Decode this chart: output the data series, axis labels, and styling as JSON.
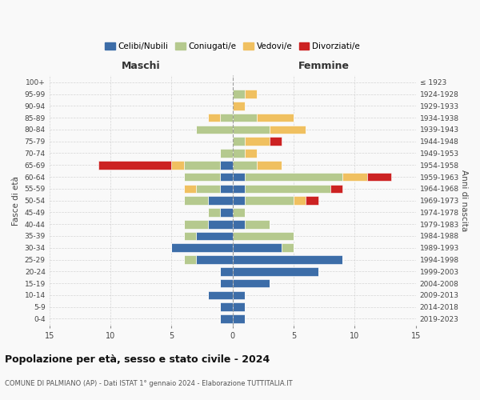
{
  "age_groups": [
    "100+",
    "95-99",
    "90-94",
    "85-89",
    "80-84",
    "75-79",
    "70-74",
    "65-69",
    "60-64",
    "55-59",
    "50-54",
    "45-49",
    "40-44",
    "35-39",
    "30-34",
    "25-29",
    "20-24",
    "15-19",
    "10-14",
    "5-9",
    "0-4"
  ],
  "birth_years": [
    "≤ 1923",
    "1924-1928",
    "1929-1933",
    "1934-1938",
    "1939-1943",
    "1944-1948",
    "1949-1953",
    "1954-1958",
    "1959-1963",
    "1964-1968",
    "1969-1973",
    "1974-1978",
    "1979-1983",
    "1984-1988",
    "1989-1993",
    "1994-1998",
    "1999-2003",
    "2004-2008",
    "2009-2013",
    "2014-2018",
    "2019-2023"
  ],
  "maschi": {
    "celibi": [
      0,
      0,
      0,
      0,
      0,
      0,
      0,
      1,
      1,
      1,
      2,
      1,
      2,
      3,
      5,
      3,
      1,
      1,
      2,
      1,
      1
    ],
    "coniugati": [
      0,
      0,
      0,
      1,
      3,
      0,
      1,
      3,
      3,
      2,
      2,
      1,
      2,
      1,
      0,
      1,
      0,
      0,
      0,
      0,
      0
    ],
    "vedovi": [
      0,
      0,
      0,
      1,
      0,
      0,
      0,
      1,
      0,
      1,
      0,
      0,
      0,
      0,
      0,
      0,
      0,
      0,
      0,
      0,
      0
    ],
    "divorziati": [
      0,
      0,
      0,
      0,
      0,
      0,
      0,
      6,
      0,
      0,
      0,
      0,
      0,
      0,
      0,
      0,
      0,
      0,
      0,
      0,
      0
    ]
  },
  "femmine": {
    "nubili": [
      0,
      0,
      0,
      0,
      0,
      0,
      0,
      0,
      1,
      1,
      1,
      0,
      1,
      0,
      4,
      9,
      7,
      3,
      1,
      1,
      1
    ],
    "coniugate": [
      0,
      1,
      0,
      2,
      3,
      1,
      1,
      2,
      8,
      7,
      4,
      1,
      2,
      5,
      1,
      0,
      0,
      0,
      0,
      0,
      0
    ],
    "vedove": [
      0,
      1,
      1,
      3,
      3,
      2,
      1,
      2,
      2,
      0,
      1,
      0,
      0,
      0,
      0,
      0,
      0,
      0,
      0,
      0,
      0
    ],
    "divorziate": [
      0,
      0,
      0,
      0,
      0,
      1,
      0,
      0,
      2,
      1,
      1,
      0,
      0,
      0,
      0,
      0,
      0,
      0,
      0,
      0,
      0
    ]
  },
  "colors": {
    "celibi": "#3d6da8",
    "coniugati": "#b5c98e",
    "vedovi": "#f0c060",
    "divorziati": "#cc2222"
  },
  "xlim": 15,
  "title": "Popolazione per età, sesso e stato civile - 2024",
  "subtitle": "COMUNE DI PALMIANO (AP) - Dati ISTAT 1° gennaio 2024 - Elaborazione TUTTITALIA.IT",
  "ylabel_left": "Fasce di età",
  "ylabel_right": "Anni di nascita",
  "xlabel_maschi": "Maschi",
  "xlabel_femmine": "Femmine",
  "legend_labels": [
    "Celibi/Nubili",
    "Coniugati/e",
    "Vedovi/e",
    "Divorziati/e"
  ],
  "bg_color": "#f9f9f9"
}
